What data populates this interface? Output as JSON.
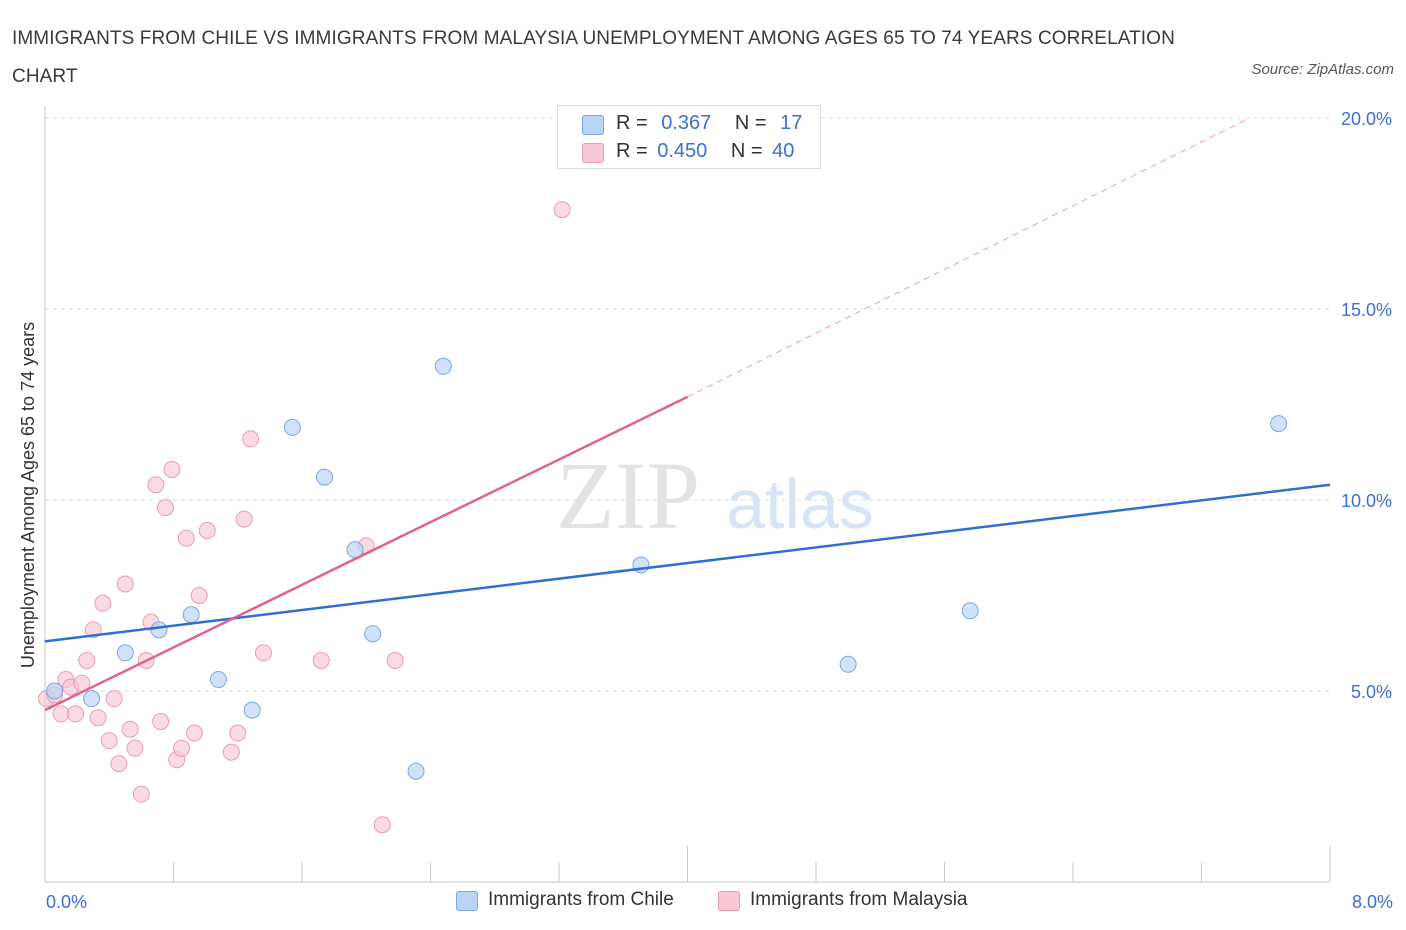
{
  "title": "IMMIGRANTS FROM CHILE VS IMMIGRANTS FROM MALAYSIA UNEMPLOYMENT AMONG AGES 65 TO 74 YEARS CORRELATION CHART",
  "source": "Source: ZipAtlas.com",
  "watermark": {
    "zip": "ZIP",
    "atlas": "atlas"
  },
  "legend": {
    "chile": {
      "r_label": "R =",
      "r_value": "0.367",
      "n_label": "N =",
      "n_value": "17"
    },
    "malaysia": {
      "r_label": "R =",
      "r_value": "0.450",
      "n_label": "N =",
      "n_value": "40"
    }
  },
  "bottom_legend": {
    "chile": "Immigrants from Chile",
    "malaysia": "Immigrants from Malaysia"
  },
  "colors": {
    "chile_fill": "#b9d3f5",
    "chile_stroke": "#7aa6e0",
    "chile_line": "#2f6fd0",
    "malaysia_fill": "#f8c8d6",
    "malaysia_stroke": "#ec9ab2",
    "malaysia_line": "#e0628e",
    "axis_text": "#3b6fd0",
    "grid": "#dedede"
  },
  "chart_data": {
    "type": "scatter",
    "xlabel": "",
    "ylabel": "Unemployment Among Ages 65 to 74 years",
    "xlim": [
      0,
      8
    ],
    "ylim": [
      0,
      20
    ],
    "x_tick_labels": [
      "0.0%",
      "8.0%"
    ],
    "y_ticks": [
      5,
      10,
      15,
      20
    ],
    "y_tick_labels": [
      "5.0%",
      "10.0%",
      "15.0%",
      "20.0%"
    ],
    "series": [
      {
        "name": "Immigrants from Chile",
        "points": [
          [
            0.06,
            5.0
          ],
          [
            0.29,
            4.8
          ],
          [
            0.5,
            6.0
          ],
          [
            0.71,
            6.6
          ],
          [
            0.91,
            7.0
          ],
          [
            1.08,
            5.3
          ],
          [
            1.29,
            4.5
          ],
          [
            1.54,
            11.9
          ],
          [
            1.74,
            10.6
          ],
          [
            1.93,
            8.7
          ],
          [
            2.04,
            6.5
          ],
          [
            2.31,
            2.9
          ],
          [
            2.48,
            13.5
          ],
          [
            3.71,
            8.3
          ],
          [
            5.0,
            5.7
          ],
          [
            5.76,
            7.1
          ],
          [
            7.68,
            12.0
          ]
        ],
        "trend": {
          "x1": 0.0,
          "y1": 6.3,
          "x2": 8.0,
          "y2": 10.4
        }
      },
      {
        "name": "Immigrants from Malaysia",
        "points": [
          [
            0.01,
            4.8
          ],
          [
            0.06,
            4.9
          ],
          [
            0.1,
            4.4
          ],
          [
            0.13,
            5.3
          ],
          [
            0.16,
            5.1
          ],
          [
            0.19,
            4.4
          ],
          [
            0.23,
            5.2
          ],
          [
            0.26,
            5.8
          ],
          [
            0.3,
            6.6
          ],
          [
            0.33,
            4.3
          ],
          [
            0.36,
            7.3
          ],
          [
            0.4,
            3.7
          ],
          [
            0.43,
            4.8
          ],
          [
            0.46,
            3.1
          ],
          [
            0.5,
            7.8
          ],
          [
            0.53,
            4.0
          ],
          [
            0.56,
            3.5
          ],
          [
            0.6,
            2.3
          ],
          [
            0.63,
            5.8
          ],
          [
            0.66,
            6.8
          ],
          [
            0.69,
            10.4
          ],
          [
            0.72,
            4.2
          ],
          [
            0.75,
            9.8
          ],
          [
            0.79,
            10.8
          ],
          [
            0.82,
            3.2
          ],
          [
            0.85,
            3.5
          ],
          [
            0.88,
            9.0
          ],
          [
            0.93,
            3.9
          ],
          [
            0.96,
            7.5
          ],
          [
            1.01,
            9.2
          ],
          [
            1.16,
            3.4
          ],
          [
            1.2,
            3.9
          ],
          [
            1.24,
            9.5
          ],
          [
            1.28,
            11.6
          ],
          [
            1.36,
            6.0
          ],
          [
            1.72,
            5.8
          ],
          [
            2.0,
            8.8
          ],
          [
            2.1,
            1.5
          ],
          [
            2.18,
            5.8
          ],
          [
            3.22,
            17.6
          ]
        ],
        "trend": {
          "x1": 0.0,
          "y1": 4.5,
          "x2": 4.0,
          "y2": 12.7
        },
        "trend_extension": {
          "x1": 4.0,
          "y1": 12.7,
          "x2": 7.5,
          "y2": 20.0
        }
      }
    ]
  }
}
